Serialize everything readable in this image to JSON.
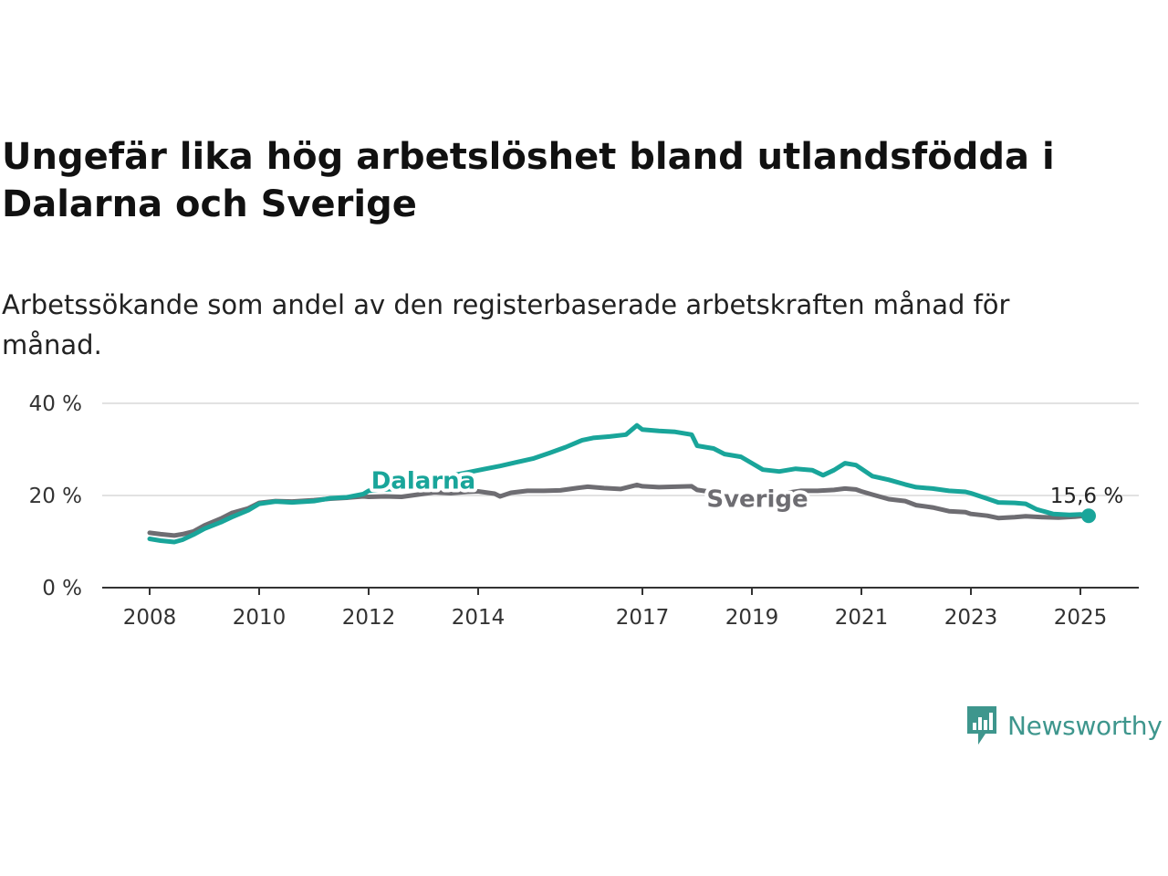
{
  "header": {
    "title": "Ungefär lika hög arbetslöshet bland utlandsfödda i Dalarna och Sverige",
    "subtitle": "Arbetssökande som andel av den registerbaserade arbetskraften månad för månad."
  },
  "branding": {
    "name": "Newsworthy",
    "icon": "newsworthy-logo-icon",
    "color": "#3e968d"
  },
  "chart_data": {
    "type": "line",
    "title": "Ungefär lika hög arbetslöshet bland utlandsfödda i Dalarna och Sverige",
    "subtitle": "Arbetssökande som andel av den registerbaserade arbetskraften månad för månad.",
    "x_range": [
      2008.0,
      2025.2
    ],
    "ylim": [
      0,
      40
    ],
    "y_ticks": [
      0,
      20,
      40
    ],
    "y_tick_labels": [
      "0 %",
      "20 %",
      "40 %"
    ],
    "x_ticks": [
      2008,
      2010,
      2012,
      2014,
      2017,
      2019,
      2021,
      2023,
      2025
    ],
    "x_tick_labels": [
      "2008",
      "2010",
      "2012",
      "2014",
      "2017",
      "2019",
      "2021",
      "2023",
      "2025"
    ],
    "grid": "horizontal",
    "end_label": "15,6 %",
    "series": [
      {
        "name": "Dalarna",
        "color": "#19a59a",
        "points": [
          [
            2008.0,
            10.6
          ],
          [
            2008.2,
            10.2
          ],
          [
            2008.45,
            9.9
          ],
          [
            2008.6,
            10.4
          ],
          [
            2008.8,
            11.5
          ],
          [
            2009.0,
            12.8
          ],
          [
            2009.3,
            14.2
          ],
          [
            2009.5,
            15.3
          ],
          [
            2009.8,
            16.8
          ],
          [
            2010.0,
            18.2
          ],
          [
            2010.3,
            18.7
          ],
          [
            2010.6,
            18.5
          ],
          [
            2011.0,
            18.8
          ],
          [
            2011.3,
            19.4
          ],
          [
            2011.6,
            19.6
          ],
          [
            2011.9,
            20.3
          ],
          [
            2012.0,
            21.0
          ],
          [
            2012.3,
            21.3
          ],
          [
            2012.6,
            21.5
          ],
          [
            2012.9,
            22.5
          ],
          [
            2013.2,
            23.5
          ],
          [
            2013.5,
            24.3
          ],
          [
            2013.8,
            25.0
          ],
          [
            2014.1,
            25.7
          ],
          [
            2014.4,
            26.4
          ],
          [
            2014.7,
            27.2
          ],
          [
            2015.0,
            28.0
          ],
          [
            2015.3,
            29.2
          ],
          [
            2015.6,
            30.5
          ],
          [
            2015.9,
            32.0
          ],
          [
            2016.1,
            32.5
          ],
          [
            2016.4,
            32.8
          ],
          [
            2016.7,
            33.2
          ],
          [
            2016.9,
            35.2
          ],
          [
            2017.0,
            34.3
          ],
          [
            2017.3,
            34.0
          ],
          [
            2017.6,
            33.8
          ],
          [
            2017.9,
            33.2
          ],
          [
            2018.0,
            30.8
          ],
          [
            2018.3,
            30.2
          ],
          [
            2018.5,
            29.0
          ],
          [
            2018.8,
            28.4
          ],
          [
            2019.0,
            27.0
          ],
          [
            2019.2,
            25.6
          ],
          [
            2019.5,
            25.2
          ],
          [
            2019.8,
            25.8
          ],
          [
            2020.1,
            25.5
          ],
          [
            2020.3,
            24.4
          ],
          [
            2020.5,
            25.5
          ],
          [
            2020.7,
            27.0
          ],
          [
            2020.9,
            26.6
          ],
          [
            2021.0,
            25.8
          ],
          [
            2021.2,
            24.2
          ],
          [
            2021.5,
            23.4
          ],
          [
            2021.8,
            22.4
          ],
          [
            2022.0,
            21.8
          ],
          [
            2022.3,
            21.5
          ],
          [
            2022.6,
            21.0
          ],
          [
            2022.9,
            20.8
          ],
          [
            2023.0,
            20.5
          ],
          [
            2023.3,
            19.3
          ],
          [
            2023.5,
            18.5
          ],
          [
            2023.8,
            18.4
          ],
          [
            2024.0,
            18.2
          ],
          [
            2024.2,
            17.0
          ],
          [
            2024.5,
            16.0
          ],
          [
            2024.8,
            15.8
          ],
          [
            2025.0,
            15.9
          ],
          [
            2025.15,
            15.6
          ]
        ]
      },
      {
        "name": "Sverige",
        "color": "#6e6d72",
        "points": [
          [
            2008.0,
            11.9
          ],
          [
            2008.2,
            11.6
          ],
          [
            2008.45,
            11.3
          ],
          [
            2008.6,
            11.6
          ],
          [
            2008.8,
            12.2
          ],
          [
            2009.0,
            13.5
          ],
          [
            2009.3,
            15.0
          ],
          [
            2009.5,
            16.2
          ],
          [
            2009.8,
            17.2
          ],
          [
            2010.0,
            18.4
          ],
          [
            2010.3,
            18.8
          ],
          [
            2010.6,
            18.7
          ],
          [
            2011.0,
            19.0
          ],
          [
            2011.3,
            19.3
          ],
          [
            2011.6,
            19.5
          ],
          [
            2011.9,
            19.8
          ],
          [
            2012.0,
            19.7
          ],
          [
            2012.3,
            19.8
          ],
          [
            2012.6,
            19.7
          ],
          [
            2012.9,
            20.2
          ],
          [
            2013.2,
            20.7
          ],
          [
            2013.5,
            20.5
          ],
          [
            2013.8,
            20.8
          ],
          [
            2014.0,
            20.9
          ],
          [
            2014.3,
            20.4
          ],
          [
            2014.4,
            19.8
          ],
          [
            2014.6,
            20.6
          ],
          [
            2014.9,
            21.0
          ],
          [
            2015.2,
            21.0
          ],
          [
            2015.5,
            21.1
          ],
          [
            2015.8,
            21.6
          ],
          [
            2016.0,
            21.9
          ],
          [
            2016.3,
            21.6
          ],
          [
            2016.6,
            21.4
          ],
          [
            2016.9,
            22.3
          ],
          [
            2017.0,
            22.0
          ],
          [
            2017.3,
            21.8
          ],
          [
            2017.6,
            21.9
          ],
          [
            2017.9,
            22.0
          ],
          [
            2018.0,
            21.2
          ],
          [
            2018.3,
            20.7
          ],
          [
            2018.5,
            20.2
          ],
          [
            2018.8,
            19.9
          ],
          [
            2019.0,
            19.6
          ],
          [
            2019.3,
            19.9
          ],
          [
            2019.6,
            20.5
          ],
          [
            2019.9,
            21.0
          ],
          [
            2020.2,
            21.0
          ],
          [
            2020.5,
            21.2
          ],
          [
            2020.7,
            21.5
          ],
          [
            2020.9,
            21.3
          ],
          [
            2021.0,
            20.9
          ],
          [
            2021.2,
            20.2
          ],
          [
            2021.5,
            19.2
          ],
          [
            2021.8,
            18.8
          ],
          [
            2022.0,
            17.9
          ],
          [
            2022.3,
            17.4
          ],
          [
            2022.6,
            16.6
          ],
          [
            2022.9,
            16.4
          ],
          [
            2023.0,
            16.0
          ],
          [
            2023.3,
            15.6
          ],
          [
            2023.5,
            15.1
          ],
          [
            2023.8,
            15.3
          ],
          [
            2024.0,
            15.5
          ],
          [
            2024.3,
            15.3
          ],
          [
            2024.6,
            15.2
          ],
          [
            2024.9,
            15.4
          ],
          [
            2025.15,
            15.7
          ]
        ]
      }
    ]
  }
}
